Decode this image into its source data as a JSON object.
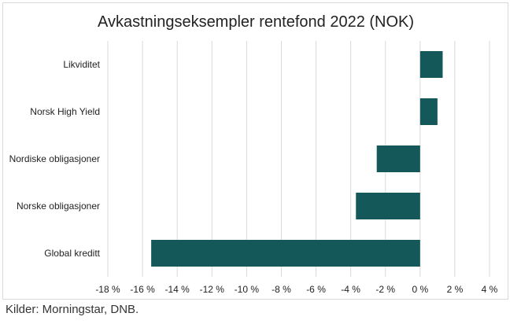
{
  "chart_data": {
    "type": "bar",
    "orientation": "horizontal",
    "title": "Avkastningseksempler rentefond 2022 (NOK)",
    "categories": [
      "Likviditet",
      "Norsk High Yield",
      "Nordiske obligasjoner",
      "Norske obligasjoner",
      "Global kreditt"
    ],
    "values": [
      1.3,
      1.0,
      -2.5,
      -3.7,
      -15.5
    ],
    "xlim": [
      -18,
      4
    ],
    "xticks": [
      -18,
      -16,
      -14,
      -12,
      -10,
      -8,
      -6,
      -4,
      -2,
      0,
      2,
      4
    ],
    "tick_labels": [
      "-18 %",
      "-16 %",
      "-14 %",
      "-12 %",
      "-10 %",
      "-8 %",
      "-6 %",
      "-4 %",
      "-2 %",
      "0 %",
      "2 %",
      "4 %"
    ],
    "grid": "vertical",
    "bar_color": "#15585a",
    "grid_color": "#d9d9d9"
  },
  "source": "Kilder: Morningstar, DNB."
}
